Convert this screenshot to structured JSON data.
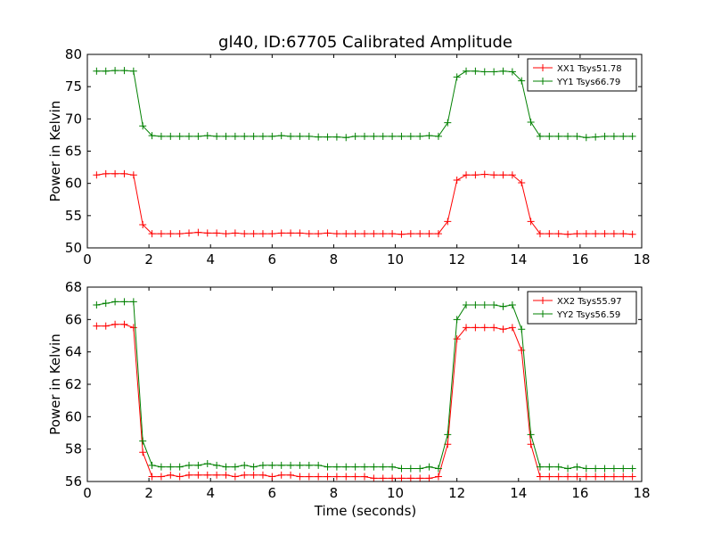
{
  "title": "gl40, ID:67705 Calibrated Amplitude",
  "xlabel": "Time (seconds)",
  "chart_data": [
    {
      "type": "line",
      "ylabel": "Power in Kelvin",
      "xlim": [
        0,
        18
      ],
      "ylim": [
        50,
        80
      ],
      "xticks": [
        0,
        2,
        4,
        6,
        8,
        10,
        12,
        14,
        16,
        18
      ],
      "yticks": [
        50,
        55,
        60,
        65,
        70,
        75,
        80
      ],
      "legend_position": "top-right",
      "x": [
        0.3,
        0.6,
        0.9,
        1.2,
        1.5,
        1.8,
        2.1,
        2.4,
        2.7,
        3.0,
        3.3,
        3.6,
        3.9,
        4.2,
        4.5,
        4.8,
        5.1,
        5.4,
        5.7,
        6.0,
        6.3,
        6.6,
        6.9,
        7.2,
        7.5,
        7.8,
        8.1,
        8.4,
        8.7,
        9.0,
        9.3,
        9.6,
        9.9,
        10.2,
        10.5,
        10.8,
        11.1,
        11.4,
        11.7,
        12.0,
        12.3,
        12.6,
        12.9,
        13.2,
        13.5,
        13.8,
        14.1,
        14.4,
        14.7,
        15.0,
        15.3,
        15.6,
        15.9,
        16.2,
        16.5,
        16.8,
        17.1,
        17.4,
        17.7
      ],
      "series": [
        {
          "name": "XX1 Tsys51.78",
          "color": "#ff0000",
          "values": [
            61.3,
            61.5,
            61.5,
            61.5,
            61.3,
            53.6,
            52.2,
            52.2,
            52.2,
            52.2,
            52.3,
            52.4,
            52.3,
            52.3,
            52.2,
            52.3,
            52.2,
            52.2,
            52.2,
            52.2,
            52.3,
            52.3,
            52.3,
            52.2,
            52.2,
            52.3,
            52.2,
            52.2,
            52.2,
            52.2,
            52.2,
            52.2,
            52.2,
            52.1,
            52.2,
            52.2,
            52.2,
            52.2,
            54.1,
            60.5,
            61.3,
            61.3,
            61.4,
            61.3,
            61.3,
            61.3,
            60.1,
            54.1,
            52.2,
            52.2,
            52.2,
            52.1,
            52.2,
            52.2,
            52.2,
            52.2,
            52.2,
            52.2,
            52.1
          ]
        },
        {
          "name": "YY1 Tsys66.79",
          "color": "#008000",
          "values": [
            77.4,
            77.4,
            77.5,
            77.5,
            77.4,
            68.9,
            67.4,
            67.3,
            67.3,
            67.3,
            67.3,
            67.3,
            67.4,
            67.3,
            67.3,
            67.3,
            67.3,
            67.3,
            67.3,
            67.3,
            67.4,
            67.3,
            67.3,
            67.3,
            67.2,
            67.2,
            67.2,
            67.1,
            67.3,
            67.3,
            67.3,
            67.3,
            67.3,
            67.3,
            67.3,
            67.3,
            67.4,
            67.3,
            69.4,
            76.5,
            77.4,
            77.4,
            77.3,
            77.3,
            77.4,
            77.3,
            75.9,
            69.5,
            67.3,
            67.3,
            67.3,
            67.3,
            67.3,
            67.1,
            67.2,
            67.3,
            67.3,
            67.3,
            67.3
          ]
        }
      ]
    },
    {
      "type": "line",
      "ylabel": "Power in Kelvin",
      "xlim": [
        0,
        18
      ],
      "ylim": [
        56,
        68
      ],
      "xticks": [
        0,
        2,
        4,
        6,
        8,
        10,
        12,
        14,
        16,
        18
      ],
      "yticks": [
        56,
        58,
        60,
        62,
        64,
        66,
        68
      ],
      "legend_position": "top-right",
      "x": [
        0.3,
        0.6,
        0.9,
        1.2,
        1.5,
        1.8,
        2.1,
        2.4,
        2.7,
        3.0,
        3.3,
        3.6,
        3.9,
        4.2,
        4.5,
        4.8,
        5.1,
        5.4,
        5.7,
        6.0,
        6.3,
        6.6,
        6.9,
        7.2,
        7.5,
        7.8,
        8.1,
        8.4,
        8.7,
        9.0,
        9.3,
        9.6,
        9.9,
        10.2,
        10.5,
        10.8,
        11.1,
        11.4,
        11.7,
        12.0,
        12.3,
        12.6,
        12.9,
        13.2,
        13.5,
        13.8,
        14.1,
        14.4,
        14.7,
        15.0,
        15.3,
        15.6,
        15.9,
        16.2,
        16.5,
        16.8,
        17.1,
        17.4,
        17.7
      ],
      "series": [
        {
          "name": "XX2 Tsys55.97",
          "color": "#ff0000",
          "values": [
            65.6,
            65.6,
            65.7,
            65.7,
            65.5,
            57.8,
            56.3,
            56.3,
            56.4,
            56.3,
            56.4,
            56.4,
            56.4,
            56.4,
            56.4,
            56.3,
            56.4,
            56.4,
            56.4,
            56.3,
            56.4,
            56.4,
            56.3,
            56.3,
            56.3,
            56.3,
            56.3,
            56.3,
            56.3,
            56.3,
            56.2,
            56.2,
            56.2,
            56.2,
            56.2,
            56.2,
            56.2,
            56.3,
            58.3,
            64.8,
            65.5,
            65.5,
            65.5,
            65.5,
            65.4,
            65.5,
            64.1,
            58.3,
            56.3,
            56.3,
            56.3,
            56.3,
            56.3,
            56.3,
            56.3,
            56.3,
            56.3,
            56.3,
            56.3
          ]
        },
        {
          "name": "YY2 Tsys56.59",
          "color": "#008000",
          "values": [
            66.9,
            67.0,
            67.1,
            67.1,
            67.1,
            58.5,
            57.0,
            56.9,
            56.9,
            56.9,
            57.0,
            57.0,
            57.1,
            57.0,
            56.9,
            56.9,
            57.0,
            56.9,
            57.0,
            57.0,
            57.0,
            57.0,
            57.0,
            57.0,
            57.0,
            56.9,
            56.9,
            56.9,
            56.9,
            56.9,
            56.9,
            56.9,
            56.9,
            56.8,
            56.8,
            56.8,
            56.9,
            56.8,
            58.9,
            66.0,
            66.9,
            66.9,
            66.9,
            66.9,
            66.8,
            66.9,
            65.4,
            58.9,
            56.9,
            56.9,
            56.9,
            56.8,
            56.9,
            56.8,
            56.8,
            56.8,
            56.8,
            56.8,
            56.8
          ]
        }
      ]
    }
  ]
}
